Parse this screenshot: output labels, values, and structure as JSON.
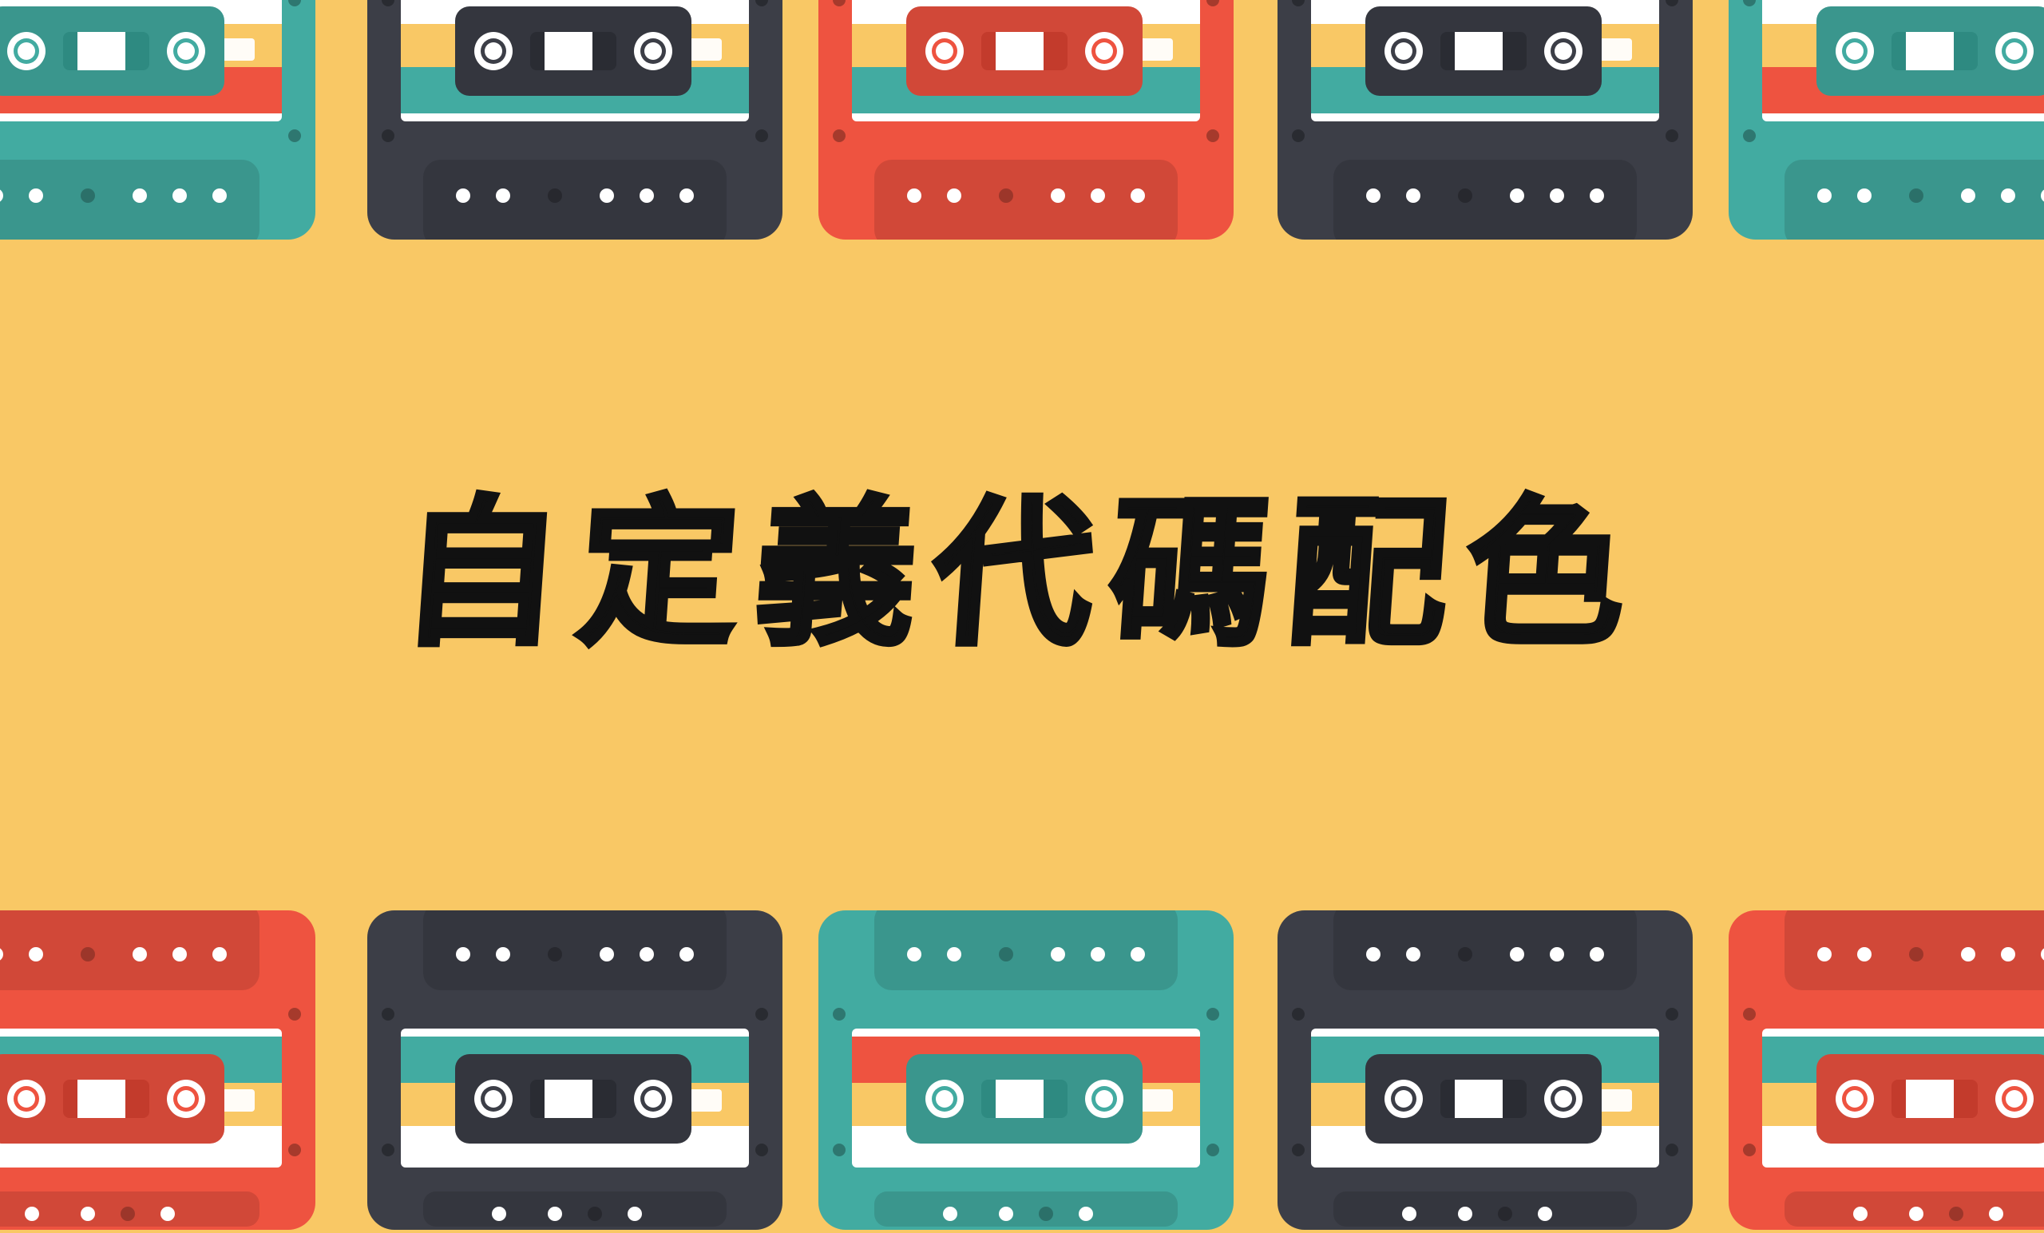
{
  "title": "自定義代碼配色",
  "palette": {
    "background": "#f9c865",
    "red": "#ee5340",
    "teal": "#42aba1",
    "dark": "#3c3e47",
    "yellow": "#f9c865",
    "white": "#ffffff"
  },
  "cassettes": {
    "top": [
      {
        "color": "teal"
      },
      {
        "color": "dark"
      },
      {
        "color": "red"
      },
      {
        "color": "dark"
      },
      {
        "color": "teal"
      }
    ],
    "bottom": [
      {
        "color": "red"
      },
      {
        "color": "dark"
      },
      {
        "color": "teal"
      },
      {
        "color": "dark"
      },
      {
        "color": "red"
      }
    ]
  }
}
